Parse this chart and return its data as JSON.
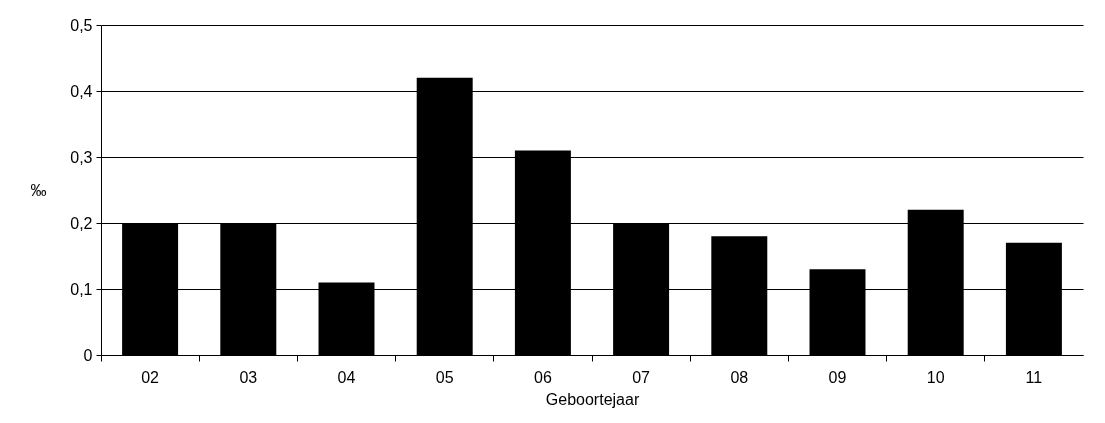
{
  "chart_data": {
    "type": "bar",
    "xlabel": "Geboortejaar",
    "ylabel": "‰",
    "categories": [
      "02",
      "03",
      "04",
      "05",
      "06",
      "07",
      "08",
      "09",
      "10",
      "11"
    ],
    "values": [
      0.2,
      0.2,
      0.11,
      0.42,
      0.31,
      0.2,
      0.18,
      0.13,
      0.22,
      0.17
    ],
    "color": "#000000",
    "ylim": [
      0,
      0.5
    ],
    "yticks": [
      0,
      {
        "value": 0.1,
        "label": "0,1"
      },
      {
        "value": 0.2,
        "label": "0,2"
      },
      {
        "value": 0.3,
        "label": "0,3"
      },
      {
        "value": 0.4,
        "label": "0,4"
      },
      {
        "value": 0.5,
        "label": "0,5"
      }
    ],
    "grid": "y"
  }
}
